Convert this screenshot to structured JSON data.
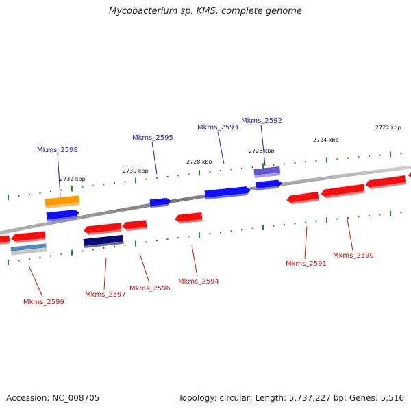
{
  "title": "Mycobacterium sp. KMS, complete genome",
  "footer": {
    "accession": "Accession: NC_008705",
    "stats": "Topology: circular; Length: 5,737,227 bp; Genes: 5,516"
  },
  "colors": {
    "backbone": "#8a8a8a",
    "ticks": "#1a8a1a",
    "forward_label": "#1a1aa8",
    "reverse_label": "#cc1111",
    "red": "#ee1111",
    "blue": "#1111ee",
    "orange": "#ff9900",
    "purple": "#6655cc",
    "navy": "#0d0d70",
    "steel": "#5588bb"
  },
  "ruler": [
    {
      "label": "2732 kbp"
    },
    {
      "label": "2730 kbp"
    },
    {
      "label": "2728 kbp"
    },
    {
      "label": "2726 kbp"
    },
    {
      "label": "2724 kbp"
    },
    {
      "label": "2722 kbp"
    }
  ],
  "genes": [
    {
      "label": "Mkms_2598",
      "strand": "forward"
    },
    {
      "label": "Mkms_2595",
      "strand": "forward"
    },
    {
      "label": "Mkms_2593",
      "strand": "forward"
    },
    {
      "label": "Mkms_2592",
      "strand": "forward"
    },
    {
      "label": "Mkms_2599",
      "strand": "reverse"
    },
    {
      "label": "Mkms_2597",
      "strand": "reverse"
    },
    {
      "label": "Mkms_2596",
      "strand": "reverse"
    },
    {
      "label": "Mkms_2594",
      "strand": "reverse"
    },
    {
      "label": "Mkms_2591",
      "strand": "reverse"
    },
    {
      "label": "Mkms_2590",
      "strand": "reverse"
    }
  ]
}
